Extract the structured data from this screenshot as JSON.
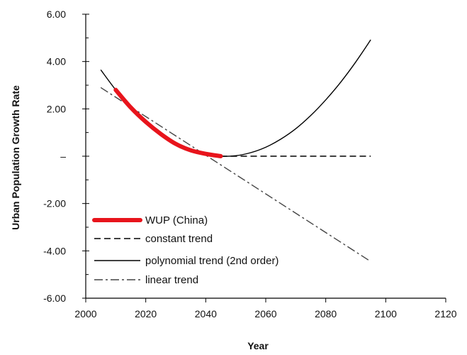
{
  "chart_data": {
    "type": "line",
    "xlabel": "Year",
    "ylabel": "Urban Population Growth Rate",
    "xlim": [
      2000,
      2120
    ],
    "ylim": [
      -6,
      6
    ],
    "x_ticks": [
      2000,
      2020,
      2040,
      2060,
      2080,
      2100,
      2120
    ],
    "x_tick_labels": [
      "2000",
      "2020",
      "2040",
      "2060",
      "2080",
      "2100",
      "2120"
    ],
    "y_ticks": [
      6,
      4,
      2,
      0,
      -2,
      -4,
      -6
    ],
    "y_tick_labels": [
      "6.00",
      "4.00",
      "2.00",
      "–",
      "-2.00",
      "-4.00",
      "-6.00"
    ],
    "grid": false,
    "legend_position": "bottom-left",
    "series": [
      {
        "name": "WUP (China)",
        "style": "thick-solid",
        "color": "#e8141c",
        "x": [
          2010,
          2015,
          2020,
          2025,
          2030,
          2035,
          2040,
          2045
        ],
        "y": [
          2.8,
          2.06,
          1.45,
          0.94,
          0.52,
          0.25,
          0.1,
          0.0
        ]
      },
      {
        "name": "constant trend",
        "style": "dashed",
        "color": "#000000",
        "x": [
          2045,
          2095
        ],
        "y": [
          0.0,
          0.0
        ]
      },
      {
        "name": "polynomial trend (2nd order)",
        "style": "solid",
        "color": "#000000",
        "x": [
          2005,
          2010,
          2015,
          2020,
          2025,
          2030,
          2035,
          2040,
          2045,
          2050,
          2055,
          2060,
          2065,
          2070,
          2075,
          2080,
          2085,
          2090,
          2095
        ],
        "y": [
          3.65,
          2.8,
          2.06,
          1.45,
          0.94,
          0.52,
          0.25,
          0.1,
          0.0,
          0.02,
          0.15,
          0.38,
          0.72,
          1.16,
          1.72,
          2.38,
          3.13,
          3.98,
          4.92
        ]
      },
      {
        "name": "linear trend",
        "style": "dash-dot",
        "color": "#444444",
        "x": [
          2005,
          2095
        ],
        "y": [
          2.9,
          -4.45
        ]
      }
    ]
  }
}
